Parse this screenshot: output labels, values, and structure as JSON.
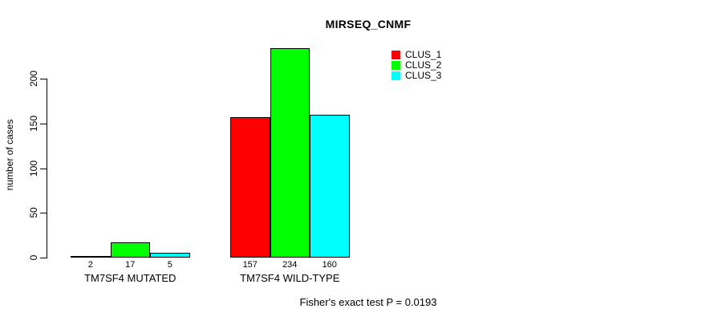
{
  "title": "MIRSEQ_CNMF",
  "ylabel": "number of cases",
  "footer": "Fisher's exact test P = 0.0193",
  "chart_data": {
    "type": "bar",
    "grouped": true,
    "categories": [
      "TM7SF4 MUTATED",
      "TM7SF4 WILD-TYPE"
    ],
    "series": [
      {
        "name": "CLUS_1",
        "color": "#FF0000",
        "values": [
          2,
          157
        ]
      },
      {
        "name": "CLUS_2",
        "color": "#00FF00",
        "values": [
          17,
          234
        ]
      },
      {
        "name": "CLUS_3",
        "color": "#00FFFF",
        "values": [
          5,
          160
        ]
      }
    ],
    "title": "MIRSEQ_CNMF",
    "xlabel": "",
    "ylabel": "number of cases",
    "yticks": [
      0,
      50,
      100,
      150,
      200
    ],
    "ylim": [
      0,
      240
    ],
    "bar_value_labels_shown": true,
    "grid": false,
    "legend_position": "top-right",
    "annotation": "Fisher's exact test P = 0.0193",
    "background_color": "#FFFFFF",
    "bar_border_color": "#000000"
  }
}
